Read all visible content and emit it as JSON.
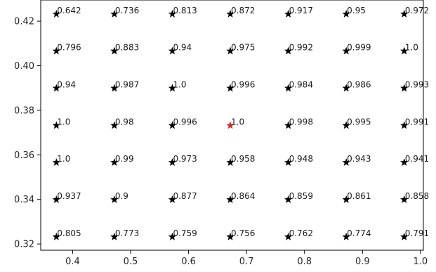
{
  "chart_data": {
    "type": "scatter",
    "title": "",
    "xlabel": "",
    "ylabel": "",
    "xlim": [
      0.345,
      1.005
    ],
    "ylim": [
      0.3172,
      0.4295
    ],
    "grid": false,
    "x": [
      0.372,
      0.472,
      0.572,
      0.672,
      0.772,
      0.872,
      0.972
    ],
    "y_rows": [
      0.4232,
      0.4066,
      0.3899,
      0.3732,
      0.3566,
      0.3399,
      0.3232
    ],
    "labels": [
      [
        "0.642",
        "0.736",
        "0.813",
        "0.872",
        "0.917",
        "0.95",
        "0.972"
      ],
      [
        "0.796",
        "0.883",
        "0.94",
        "0.975",
        "0.992",
        "0.999",
        "1.0"
      ],
      [
        "0.94",
        "0.987",
        "1.0",
        "0.996",
        "0.984",
        "0.986",
        "0.993"
      ],
      [
        "1.0",
        "0.98",
        "0.996",
        "1.0",
        "0.998",
        "0.995",
        "0.991"
      ],
      [
        "1.0",
        "0.99",
        "0.973",
        "0.958",
        "0.948",
        "0.943",
        "0.941"
      ],
      [
        "0.937",
        "0.9",
        "0.877",
        "0.864",
        "0.859",
        "0.861",
        "0.858"
      ],
      [
        "0.805",
        "0.773",
        "0.759",
        "0.756",
        "0.762",
        "0.774",
        "0.791"
      ]
    ],
    "highlight": {
      "x": 0.672,
      "y": 0.3732
    },
    "marker": "star",
    "marker_color": "#000000",
    "highlight_color": "#d62728",
    "xticks": [
      "0.4",
      "0.5",
      "0.6",
      "0.7",
      "0.8",
      "0.9",
      "1.0"
    ],
    "xtick_values": [
      0.4,
      0.5,
      0.6,
      0.7,
      0.8,
      0.9,
      1.0
    ],
    "yticks": [
      "0.32",
      "0.34",
      "0.36",
      "0.38",
      "0.40",
      "0.42"
    ],
    "ytick_values": [
      0.32,
      0.34,
      0.36,
      0.38,
      0.4,
      0.42
    ]
  }
}
